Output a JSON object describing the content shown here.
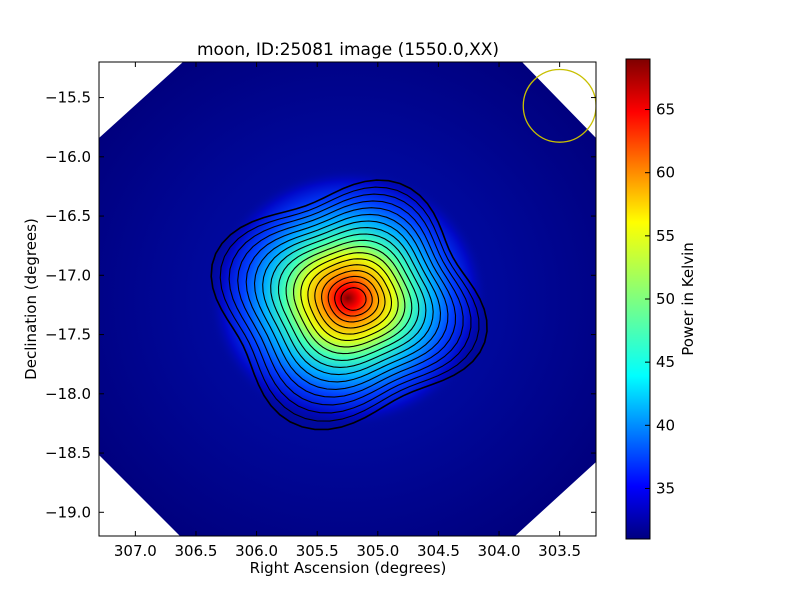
{
  "chart_data": {
    "type": "heatmap",
    "title": "moon, ID:25081 image (1550.0,XX)",
    "xlabel": "Right Ascension (degrees)",
    "ylabel": "Declination (degrees)",
    "xlim": [
      307.3,
      303.2
    ],
    "ylim": [
      -19.2,
      -15.2
    ],
    "x_ticks": [
      "307.0",
      "306.5",
      "306.0",
      "305.5",
      "305.0",
      "304.5",
      "304.0",
      "303.5"
    ],
    "x_tick_values": [
      307.0,
      306.5,
      306.0,
      305.5,
      305.0,
      304.5,
      304.0,
      303.5
    ],
    "y_ticks": [
      "−15.5",
      "−16.0",
      "−16.5",
      "−17.0",
      "−17.5",
      "−18.0",
      "−18.5",
      "−19.0"
    ],
    "y_tick_values": [
      -15.5,
      -16.0,
      -16.5,
      -17.0,
      -17.5,
      -18.0,
      -18.5,
      -19.0
    ],
    "source": {
      "ra": 305.2,
      "dec": -17.2,
      "peak": 69,
      "background": 31
    },
    "beam_circle": {
      "ra": 303.5,
      "dec": -15.57,
      "radius_deg": 0.3,
      "color": "#c8c000"
    },
    "colorbar": {
      "label": "Power in Kelvin",
      "min": 31,
      "max": 69,
      "ticks": [
        "35",
        "40",
        "45",
        "50",
        "55",
        "60",
        "65"
      ],
      "tick_values": [
        35,
        40,
        45,
        50,
        55,
        60,
        65
      ]
    },
    "contour_levels": [
      33,
      35,
      37,
      39,
      41,
      43,
      45,
      47,
      49,
      51,
      53,
      55,
      57,
      59,
      61,
      63,
      65,
      67
    ],
    "grid": false
  }
}
